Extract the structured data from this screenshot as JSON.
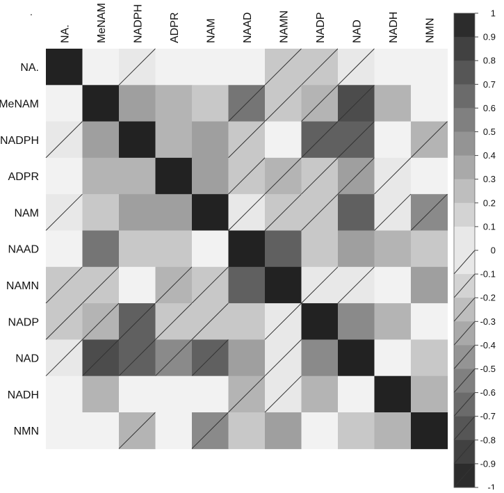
{
  "chart_data": {
    "type": "heatmap",
    "title": "",
    "xlabel": "",
    "ylabel": "",
    "corner_mark": ".",
    "x_categories": [
      "NA.",
      "MeNAM",
      "NADPH",
      "ADPR",
      "NAM",
      "NAAD",
      "NAMN",
      "NADP",
      "NAD",
      "NADH",
      "NMN"
    ],
    "y_categories": [
      "NA.",
      "MeNAM",
      "NADPH",
      "ADPR",
      "NAM",
      "NAAD",
      "NAMN",
      "NADP",
      "NAD",
      "NADH",
      "NMN"
    ],
    "values": [
      [
        1.0,
        0.0,
        -0.05,
        0.0,
        0.0,
        0.0,
        -0.2,
        -0.2,
        -0.05,
        0.0,
        0.0
      ],
      [
        0.0,
        1.0,
        0.4,
        0.3,
        0.2,
        -0.6,
        -0.2,
        -0.3,
        -0.8,
        0.3,
        0.0
      ],
      [
        -0.05,
        0.4,
        1.0,
        0.3,
        0.4,
        -0.2,
        0.0,
        -0.7,
        -0.7,
        0.0,
        -0.3
      ],
      [
        0.0,
        0.3,
        0.3,
        1.0,
        0.4,
        -0.2,
        -0.3,
        -0.2,
        -0.4,
        -0.05,
        0.0
      ],
      [
        -0.05,
        0.2,
        0.4,
        0.4,
        1.0,
        -0.05,
        -0.2,
        -0.2,
        0.7,
        -0.05,
        -0.5
      ],
      [
        0.0,
        0.6,
        0.2,
        0.2,
        0.0,
        1.0,
        0.7,
        0.2,
        0.4,
        0.3,
        0.2
      ],
      [
        -0.2,
        -0.2,
        0.0,
        -0.3,
        -0.2,
        0.7,
        1.0,
        -0.05,
        -0.05,
        0.0,
        0.4
      ],
      [
        -0.2,
        -0.3,
        -0.7,
        -0.2,
        -0.2,
        0.2,
        -0.05,
        1.0,
        0.5,
        0.3,
        0.0
      ],
      [
        -0.05,
        -0.8,
        -0.7,
        -0.5,
        -0.7,
        0.4,
        -0.05,
        0.5,
        1.0,
        0.0,
        0.2
      ],
      [
        0.0,
        0.3,
        0.0,
        0.0,
        0.0,
        -0.3,
        -0.05,
        0.3,
        0.0,
        1.0,
        0.3
      ],
      [
        0.0,
        0.0,
        -0.3,
        0.0,
        -0.5,
        0.2,
        0.4,
        0.0,
        0.2,
        0.3,
        1.0
      ]
    ],
    "value_range": [
      -1,
      1
    ],
    "negative_marked_with_diagonal_line": true,
    "colorbar": {
      "ticks": [
        "1",
        "0.9",
        "0.8",
        "0.7",
        "0.6",
        "0.5",
        "0.4",
        "0.3",
        "0.2",
        "0.1",
        "0",
        "-0.1",
        "-0.2",
        "-0.3",
        "-0.4",
        "-0.5",
        "-0.6",
        "-0.7",
        "-0.8",
        "-0.9",
        "-1"
      ],
      "placement": "right"
    },
    "colors": {
      "low_magnitude": "#f2f2f2",
      "high_magnitude": "#222222",
      "diagonal_stroke": "#333333",
      "text": "#111111"
    },
    "grid": false
  }
}
